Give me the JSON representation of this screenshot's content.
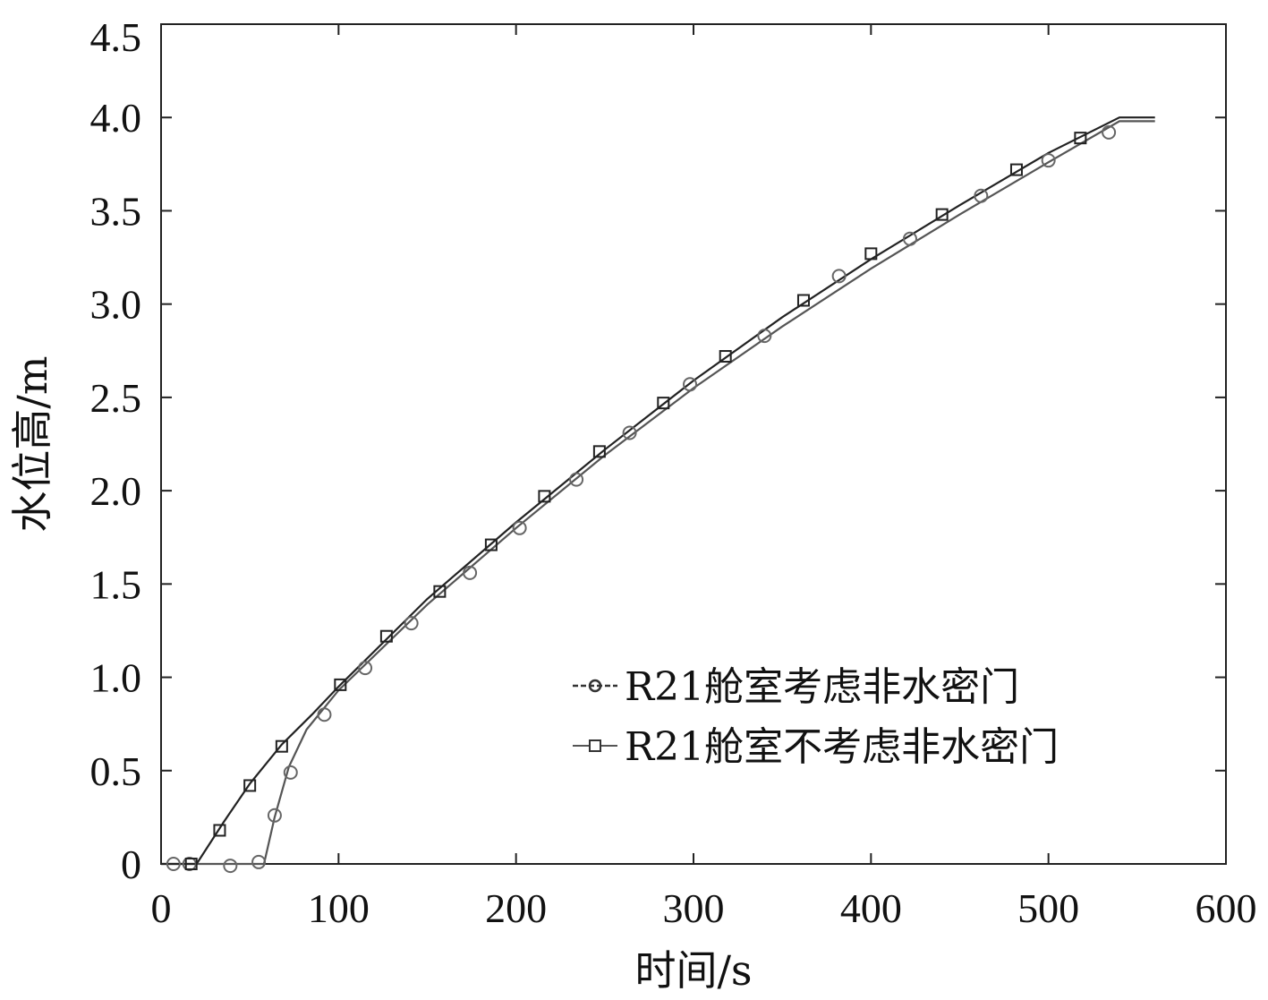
{
  "chart_data": {
    "type": "line",
    "title": "",
    "xlabel": "时间/s",
    "ylabel": "水位高/m",
    "xlim": [
      0,
      600
    ],
    "ylim": [
      0,
      4.5
    ],
    "x_ticks": [
      0,
      100,
      200,
      300,
      400,
      500,
      600
    ],
    "x_tick_labels": [
      "0",
      "100",
      "200",
      "300",
      "400",
      "500",
      "600"
    ],
    "y_ticks": [
      0,
      0.5,
      1.0,
      1.5,
      2.0,
      2.5,
      3.0,
      3.5,
      4.0,
      4.5
    ],
    "y_tick_labels": [
      "0",
      "0.5",
      "1.0",
      "1.5",
      "2.0",
      "2.5",
      "3.0",
      "3.5",
      "4.0",
      "4.5"
    ],
    "grid": false,
    "legend_position": "lower-right",
    "series": [
      {
        "name": "R21舱室考虑非水密门",
        "marker": "circle",
        "color": "#555555",
        "line": [
          [
            0,
            0
          ],
          [
            58,
            0
          ],
          [
            64,
            0.25
          ],
          [
            72,
            0.52
          ],
          [
            82,
            0.72
          ],
          [
            100,
            0.93
          ],
          [
            150,
            1.39
          ],
          [
            200,
            1.8
          ],
          [
            250,
            2.19
          ],
          [
            300,
            2.55
          ],
          [
            350,
            2.88
          ],
          [
            400,
            3.19
          ],
          [
            450,
            3.48
          ],
          [
            500,
            3.76
          ],
          [
            540,
            3.98
          ],
          [
            560,
            3.98
          ]
        ],
        "markers": [
          [
            7,
            0
          ],
          [
            16,
            0
          ],
          [
            39,
            -0.01
          ],
          [
            55,
            0.01
          ],
          [
            64,
            0.26
          ],
          [
            73,
            0.49
          ],
          [
            92,
            0.8
          ],
          [
            115,
            1.05
          ],
          [
            141,
            1.29
          ],
          [
            174,
            1.56
          ],
          [
            202,
            1.8
          ],
          [
            234,
            2.06
          ],
          [
            264,
            2.31
          ],
          [
            298,
            2.57
          ],
          [
            340,
            2.83
          ],
          [
            382,
            3.15
          ],
          [
            422,
            3.35
          ],
          [
            462,
            3.58
          ],
          [
            500,
            3.77
          ],
          [
            534,
            3.92
          ]
        ]
      },
      {
        "name": "R21舱室不考虑非水密门",
        "marker": "square",
        "color": "#222222",
        "line": [
          [
            0,
            0
          ],
          [
            20,
            0
          ],
          [
            35,
            0.22
          ],
          [
            50,
            0.43
          ],
          [
            68,
            0.64
          ],
          [
            85,
            0.8
          ],
          [
            100,
            0.95
          ],
          [
            150,
            1.42
          ],
          [
            200,
            1.83
          ],
          [
            250,
            2.22
          ],
          [
            300,
            2.59
          ],
          [
            350,
            2.93
          ],
          [
            400,
            3.24
          ],
          [
            450,
            3.53
          ],
          [
            500,
            3.81
          ],
          [
            540,
            4.0
          ],
          [
            560,
            4.0
          ]
        ],
        "markers": [
          [
            17,
            0
          ],
          [
            33,
            0.18
          ],
          [
            50,
            0.42
          ],
          [
            68,
            0.63
          ],
          [
            101,
            0.96
          ],
          [
            127,
            1.22
          ],
          [
            157,
            1.46
          ],
          [
            186,
            1.71
          ],
          [
            216,
            1.97
          ],
          [
            247,
            2.21
          ],
          [
            283,
            2.47
          ],
          [
            318,
            2.72
          ],
          [
            362,
            3.02
          ],
          [
            400,
            3.27
          ],
          [
            440,
            3.48
          ],
          [
            482,
            3.72
          ],
          [
            518,
            3.89
          ]
        ]
      }
    ]
  }
}
